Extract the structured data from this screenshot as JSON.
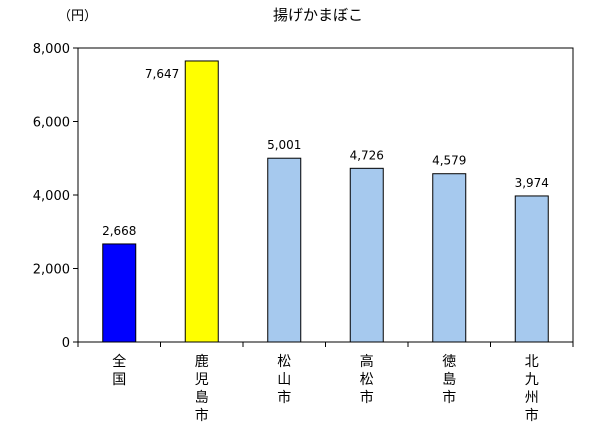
{
  "chart_data": {
    "type": "bar",
    "title": "揚げかまぼこ",
    "ylabel": "（円）",
    "xlabel": "",
    "categories": [
      "全国",
      "鹿児島市",
      "松山市",
      "高松市",
      "徳島市",
      "北九州市"
    ],
    "values": [
      2668,
      7647,
      5001,
      4726,
      4579,
      3974
    ],
    "value_labels": [
      "2,668",
      "7,647",
      "5,001",
      "4,726",
      "4,579",
      "3,974"
    ],
    "bar_colors": [
      "#0000ff",
      "#ffff00",
      "#a6c9ee",
      "#a6c9ee",
      "#a6c9ee",
      "#a6c9ee"
    ],
    "ylim": [
      0,
      8000
    ],
    "yticks": [
      0,
      2000,
      4000,
      6000,
      8000
    ],
    "ytick_labels": [
      "0",
      "2,000",
      "4,000",
      "6,000",
      "8,000"
    ],
    "grid": false,
    "legend": "none"
  }
}
